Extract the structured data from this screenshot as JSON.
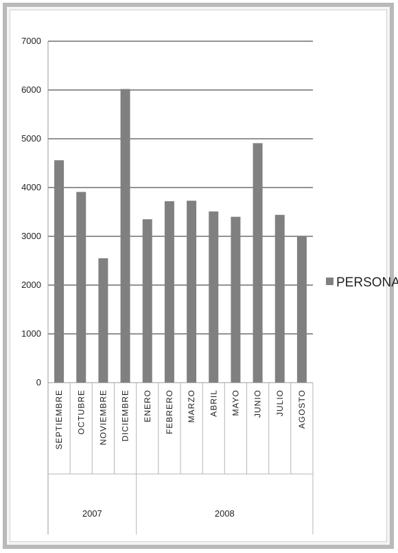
{
  "chart_data": {
    "type": "bar",
    "categories": [
      "SEPTIEMBRE",
      "OCTUBRE",
      "NOVIEMBRE",
      "DICIEMBRE",
      "ENERO",
      "FEBRERO",
      "MARZO",
      "ABRIL",
      "MAYO",
      "JUNIO",
      "JULIO",
      "AGOSTO"
    ],
    "groups": [
      {
        "label": "2007",
        "count": 4
      },
      {
        "label": "2008",
        "count": 8
      }
    ],
    "series": [
      {
        "name": "PERSONA",
        "values": [
          4560,
          3910,
          2550,
          6020,
          3350,
          3720,
          3730,
          3510,
          3400,
          4910,
          3440,
          3000
        ]
      }
    ],
    "ylim": [
      0,
      7000
    ],
    "yticks": [
      0,
      1000,
      2000,
      3000,
      4000,
      5000,
      6000,
      7000
    ],
    "grid": true,
    "legend_position": "right",
    "bar_color": "#808080"
  }
}
